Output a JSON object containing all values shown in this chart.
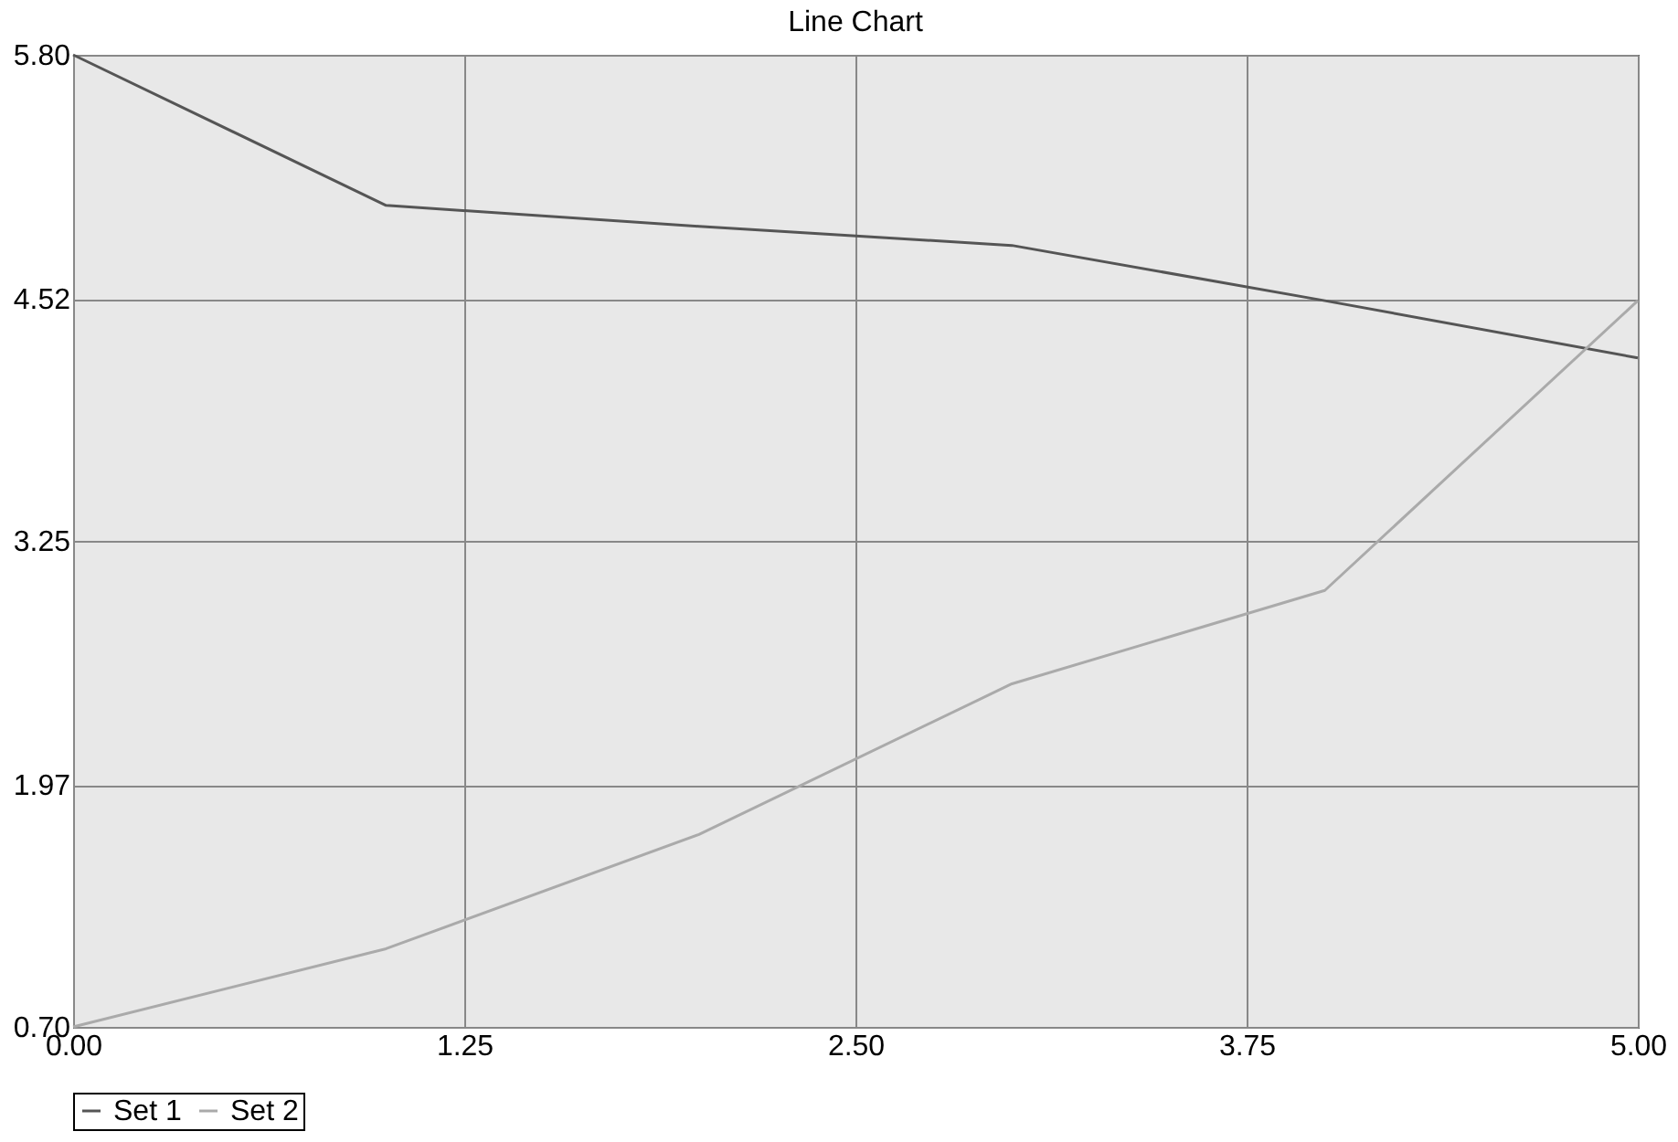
{
  "chart_data": {
    "type": "line",
    "title": "Line Chart",
    "x": [
      0,
      1,
      2,
      3,
      4,
      5
    ],
    "series": [
      {
        "name": "Set 1",
        "color": "#555555",
        "values": [
          5.8,
          5.01,
          4.9,
          4.8,
          4.51,
          4.21
        ]
      },
      {
        "name": "Set 2",
        "color": "#aaaaaa",
        "values": [
          0.7,
          1.11,
          1.71,
          2.5,
          2.99,
          4.51
        ]
      }
    ],
    "xlim": [
      0,
      5
    ],
    "xticks": [
      {
        "value": 0,
        "label": "0.00"
      },
      {
        "value": 1.25,
        "label": "1.25"
      },
      {
        "value": 2.5,
        "label": "2.50"
      },
      {
        "value": 3.75,
        "label": "3.75"
      },
      {
        "value": 5,
        "label": "5.00"
      }
    ],
    "ylim": [
      0.7,
      5.8
    ],
    "yticks": [
      {
        "value": 0.7,
        "label": "0.70"
      },
      {
        "value": 1.97,
        "label": "1.97"
      },
      {
        "value": 3.25,
        "label": "3.25"
      },
      {
        "value": 4.52,
        "label": "4.52"
      },
      {
        "value": 5.8,
        "label": "5.80"
      }
    ],
    "grid": true,
    "legend": "bottom",
    "marker": "none",
    "line_style": "solid"
  }
}
